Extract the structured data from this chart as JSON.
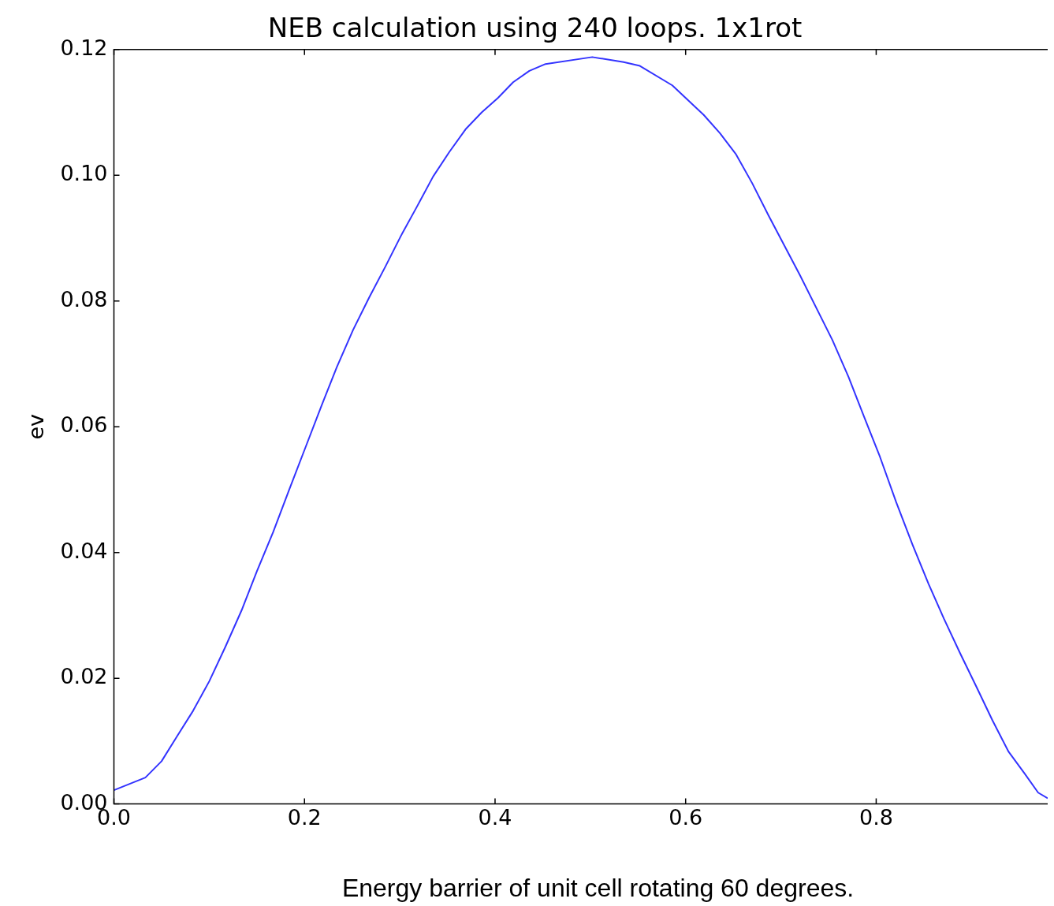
{
  "chart_data": {
    "type": "line",
    "title": "NEB calculation using 240 loops. 1x1rot",
    "ylabel": "ev",
    "annotations": [
      "Energy barrier of unit cell rotating 60 degrees."
    ],
    "x": [
      0,
      0.033,
      0.05,
      0.066,
      0.083,
      0.1,
      0.117,
      0.134,
      0.15,
      0.167,
      0.184,
      0.201,
      0.218,
      0.234,
      0.251,
      0.268,
      0.285,
      0.301,
      0.318,
      0.335,
      0.352,
      0.369,
      0.386,
      0.403,
      0.419,
      0.436,
      0.453,
      0.502,
      0.535,
      0.552,
      0.586,
      0.619,
      0.636,
      0.653,
      0.67,
      0.687,
      0.72,
      0.754,
      0.771,
      0.787,
      0.804,
      0.821,
      0.838,
      0.855,
      0.871,
      0.888,
      0.905,
      0.922,
      0.939,
      0.956,
      0.97,
      0.98
    ],
    "series": [
      {
        "color": "#3333ff",
        "values": [
          0.0022,
          0.0042,
          0.0068,
          0.0107,
          0.0148,
          0.0195,
          0.025,
          0.0308,
          0.037,
          0.0432,
          0.05,
          0.0567,
          0.0634,
          0.0695,
          0.0754,
          0.0806,
          0.0855,
          0.0903,
          0.095,
          0.0998,
          0.1037,
          0.1073,
          0.11,
          0.1123,
          0.1148,
          0.1166,
          0.1177,
          0.1188,
          0.118,
          0.1174,
          0.1143,
          0.1096,
          0.1067,
          0.1033,
          0.0987,
          0.0936,
          0.0841,
          0.0738,
          0.0679,
          0.0617,
          0.0552,
          0.048,
          0.0413,
          0.035,
          0.0295,
          0.024,
          0.0187,
          0.0133,
          0.0083,
          0.0048,
          0.0018,
          0.0009
        ]
      }
    ],
    "xlim": [
      0,
      0.98
    ],
    "xticks": [
      {
        "value": 0,
        "label": "0.0"
      },
      {
        "value": 0.2,
        "label": "0.2"
      },
      {
        "value": 0.4,
        "label": "0.4"
      },
      {
        "value": 0.6,
        "label": "0.6"
      },
      {
        "value": 0.8,
        "label": "0.8"
      }
    ],
    "ylim": [
      0,
      0.12
    ],
    "yticks": [
      {
        "value": 0,
        "label": "0.00"
      },
      {
        "value": 0.02,
        "label": "0.02"
      },
      {
        "value": 0.04,
        "label": "0.04"
      },
      {
        "value": 0.06,
        "label": "0.06"
      },
      {
        "value": 0.08,
        "label": "0.08"
      },
      {
        "value": 0.1,
        "label": "0.10"
      },
      {
        "value": 0.12,
        "label": "0.12"
      }
    ],
    "grid": false,
    "legend": false,
    "marker": "none",
    "line_style": "solid"
  }
}
